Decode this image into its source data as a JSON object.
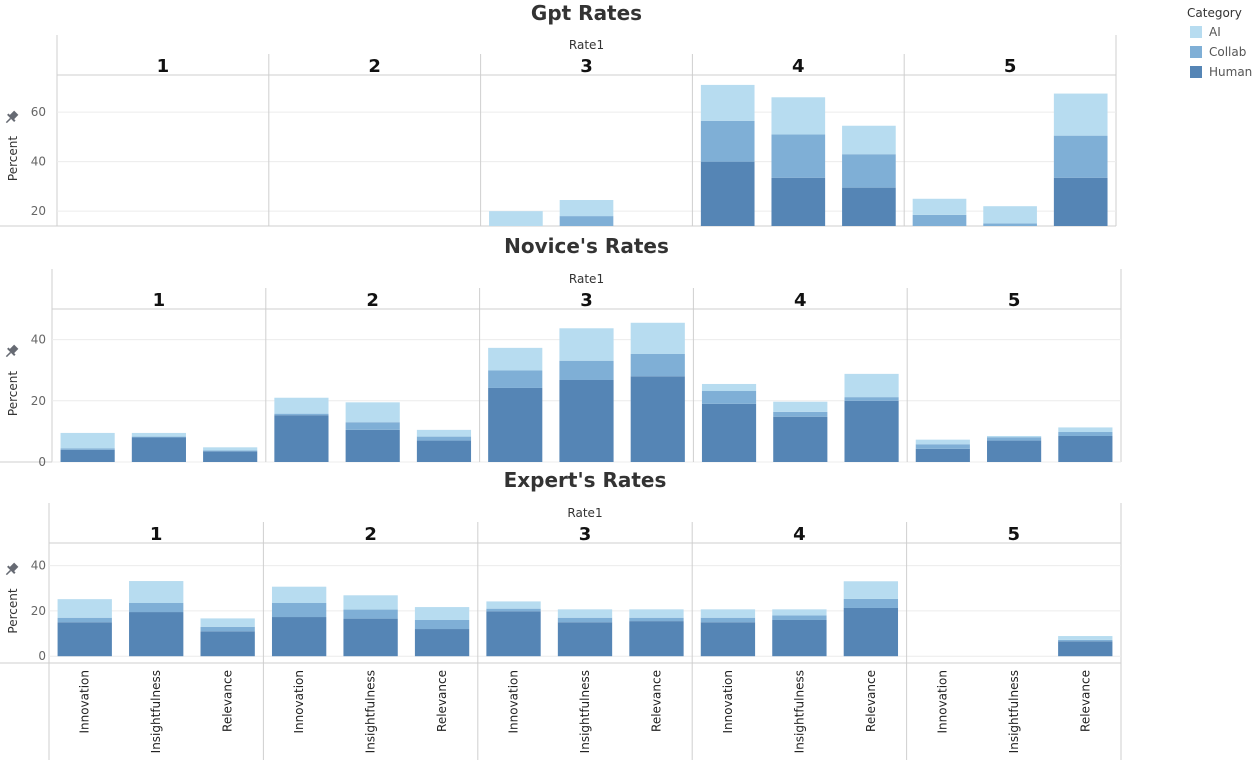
{
  "chart_data": {
    "type": "bar",
    "stacked": true,
    "facet_label": "Rate1",
    "facets": [
      "1",
      "2",
      "3",
      "4",
      "5"
    ],
    "categories": [
      "Innovation",
      "Insightfulness",
      "Relevance"
    ],
    "ylabel": "Percent",
    "legend": {
      "title": "Category",
      "position": "top-right",
      "items": [
        {
          "name": "AI",
          "color": "#b7dcf0"
        },
        {
          "name": "Collab",
          "color": "#7fafd6"
        },
        {
          "name": "Human",
          "color": "#5585b5"
        }
      ]
    },
    "charts": [
      {
        "title": "Gpt Rates",
        "ylim": [
          14,
          75
        ],
        "yticks": [
          20,
          40,
          60
        ],
        "panels": [
          {
            "rate": "1",
            "bars": []
          },
          {
            "rate": "2",
            "bars": []
          },
          {
            "rate": "3",
            "bars": [
              {
                "category": "Innovation",
                "Human": 0,
                "Collab": 0,
                "AI": 20
              },
              {
                "category": "Insightfulness",
                "Human": 0,
                "Collab": 18,
                "AI": 6.5
              }
            ]
          },
          {
            "rate": "4",
            "bars": [
              {
                "category": "Innovation",
                "Human": 40,
                "Collab": 16.5,
                "AI": 14.5
              },
              {
                "category": "Insightfulness",
                "Human": 33.5,
                "Collab": 17.5,
                "AI": 15
              },
              {
                "category": "Relevance",
                "Human": 29.5,
                "Collab": 13.5,
                "AI": 11.5
              }
            ]
          },
          {
            "rate": "5",
            "bars": [
              {
                "category": "Innovation",
                "Human": 0,
                "Collab": 18.5,
                "AI": 6.5
              },
              {
                "category": "Insightfulness",
                "Human": 0,
                "Collab": 15,
                "AI": 7
              },
              {
                "category": "Relevance",
                "Human": 33.5,
                "Collab": 17,
                "AI": 17
              }
            ]
          }
        ]
      },
      {
        "title": "Novice's Rates",
        "ylim": [
          0,
          50
        ],
        "yticks": [
          0,
          20,
          40
        ],
        "panels": [
          {
            "rate": "1",
            "bars": [
              {
                "category": "Innovation",
                "Human": 4,
                "Collab": 0.5,
                "AI": 5
              },
              {
                "category": "Insightfulness",
                "Human": 8,
                "Collab": 0.3,
                "AI": 1.2
              },
              {
                "category": "Relevance",
                "Human": 3.5,
                "Collab": 0.3,
                "AI": 1
              }
            ]
          },
          {
            "rate": "2",
            "bars": [
              {
                "category": "Innovation",
                "Human": 15.3,
                "Collab": 0.5,
                "AI": 5.2
              },
              {
                "category": "Insightfulness",
                "Human": 10.5,
                "Collab": 2.5,
                "AI": 6.5
              },
              {
                "category": "Relevance",
                "Human": 7,
                "Collab": 1.3,
                "AI": 2.2
              }
            ]
          },
          {
            "rate": "3",
            "bars": [
              {
                "category": "Innovation",
                "Human": 24.2,
                "Collab": 5.7,
                "AI": 7.4
              },
              {
                "category": "Insightfulness",
                "Human": 26.8,
                "Collab": 6.3,
                "AI": 10.6
              },
              {
                "category": "Relevance",
                "Human": 28,
                "Collab": 7.3,
                "AI": 10.2
              }
            ]
          },
          {
            "rate": "4",
            "bars": [
              {
                "category": "Innovation",
                "Human": 19,
                "Collab": 4.2,
                "AI": 2.3
              },
              {
                "category": "Insightfulness",
                "Human": 14.8,
                "Collab": 1.6,
                "AI": 3.3
              },
              {
                "category": "Relevance",
                "Human": 20,
                "Collab": 1.2,
                "AI": 7.6
              }
            ]
          },
          {
            "rate": "5",
            "bars": [
              {
                "category": "Innovation",
                "Human": 4.3,
                "Collab": 1.5,
                "AI": 1.5
              },
              {
                "category": "Insightfulness",
                "Human": 7,
                "Collab": 1.1,
                "AI": 0.4
              },
              {
                "category": "Relevance",
                "Human": 8.5,
                "Collab": 1.3,
                "AI": 1.5
              }
            ]
          }
        ]
      },
      {
        "title": "Expert's Rates",
        "ylim": [
          -3,
          50
        ],
        "yticks": [
          0,
          20,
          40
        ],
        "xlabels": true,
        "panels": [
          {
            "rate": "1",
            "bars": [
              {
                "category": "Innovation",
                "Human": 15,
                "Collab": 2,
                "AI": 8.2
              },
              {
                "category": "Insightfulness",
                "Human": 19.5,
                "Collab": 4,
                "AI": 9.7
              },
              {
                "category": "Relevance",
                "Human": 11,
                "Collab": 2,
                "AI": 3.7
              }
            ]
          },
          {
            "rate": "2",
            "bars": [
              {
                "category": "Innovation",
                "Human": 17.3,
                "Collab": 6.2,
                "AI": 7.2
              },
              {
                "category": "Insightfulness",
                "Human": 16.6,
                "Collab": 4,
                "AI": 6.3
              },
              {
                "category": "Relevance",
                "Human": 12,
                "Collab": 4,
                "AI": 5.7
              }
            ]
          },
          {
            "rate": "3",
            "bars": [
              {
                "category": "Innovation",
                "Human": 19.8,
                "Collab": 1.2,
                "AI": 3.2
              },
              {
                "category": "Insightfulness",
                "Human": 15,
                "Collab": 2,
                "AI": 3.7
              },
              {
                "category": "Relevance",
                "Human": 15.5,
                "Collab": 1.5,
                "AI": 3.7
              }
            ]
          },
          {
            "rate": "4",
            "bars": [
              {
                "category": "Innovation",
                "Human": 15,
                "Collab": 2,
                "AI": 3.7
              },
              {
                "category": "Insightfulness",
                "Human": 16,
                "Collab": 2,
                "AI": 2.7
              },
              {
                "category": "Relevance",
                "Human": 21.3,
                "Collab": 4,
                "AI": 7.8
              }
            ]
          },
          {
            "rate": "5",
            "bars": [
              {
                "category": "Innovation",
                "Human": 0,
                "Collab": 0,
                "AI": 0
              },
              {
                "category": "Insightfulness",
                "Human": 0,
                "Collab": 0,
                "AI": 0
              },
              {
                "category": "Relevance",
                "Human": 6.6,
                "Collab": 0.6,
                "AI": 1.7
              }
            ]
          }
        ]
      }
    ]
  }
}
